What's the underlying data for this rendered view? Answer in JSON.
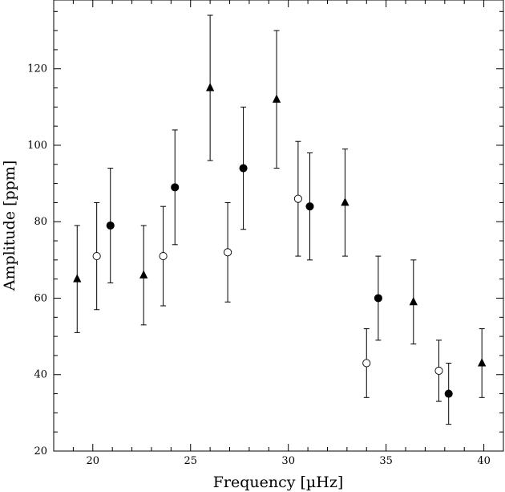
{
  "chart_data": {
    "type": "scatter",
    "title": "",
    "xlabel": "Frequency  [µHz]",
    "ylabel": "Amplitude [ppm]",
    "xlim": [
      18,
      41
    ],
    "ylim": [
      20,
      138
    ],
    "xticks": [
      20,
      25,
      30,
      35,
      40
    ],
    "yticks": [
      20,
      40,
      60,
      80,
      100,
      120
    ],
    "grid": false,
    "legend": "none",
    "series": [
      {
        "marker": "triangle-filled",
        "points": [
          {
            "x": 19.2,
            "y": 65,
            "lo": 51,
            "hi": 79
          },
          {
            "x": 22.6,
            "y": 66,
            "lo": 53,
            "hi": 79
          },
          {
            "x": 26.0,
            "y": 115,
            "lo": 96,
            "hi": 134
          },
          {
            "x": 29.4,
            "y": 112,
            "lo": 94,
            "hi": 130
          },
          {
            "x": 32.9,
            "y": 85,
            "lo": 71,
            "hi": 99
          },
          {
            "x": 36.4,
            "y": 59,
            "lo": 48,
            "hi": 70
          },
          {
            "x": 39.9,
            "y": 43,
            "lo": 34,
            "hi": 52
          }
        ]
      },
      {
        "marker": "circle-open",
        "points": [
          {
            "x": 20.2,
            "y": 71,
            "lo": 57,
            "hi": 85
          },
          {
            "x": 23.6,
            "y": 71,
            "lo": 58,
            "hi": 84
          },
          {
            "x": 26.9,
            "y": 72,
            "lo": 59,
            "hi": 85
          },
          {
            "x": 30.5,
            "y": 86,
            "lo": 71,
            "hi": 101
          },
          {
            "x": 34.0,
            "y": 43,
            "lo": 34,
            "hi": 52
          },
          {
            "x": 37.7,
            "y": 41,
            "lo": 33,
            "hi": 49
          }
        ]
      },
      {
        "marker": "circle-filled",
        "points": [
          {
            "x": 20.9,
            "y": 79,
            "lo": 64,
            "hi": 94
          },
          {
            "x": 24.2,
            "y": 89,
            "lo": 74,
            "hi": 104
          },
          {
            "x": 27.7,
            "y": 94,
            "lo": 78,
            "hi": 110
          },
          {
            "x": 31.1,
            "y": 84,
            "lo": 70,
            "hi": 98
          },
          {
            "x": 34.6,
            "y": 60,
            "lo": 49,
            "hi": 71
          },
          {
            "x": 38.2,
            "y": 35,
            "lo": 27,
            "hi": 43
          }
        ]
      }
    ]
  }
}
